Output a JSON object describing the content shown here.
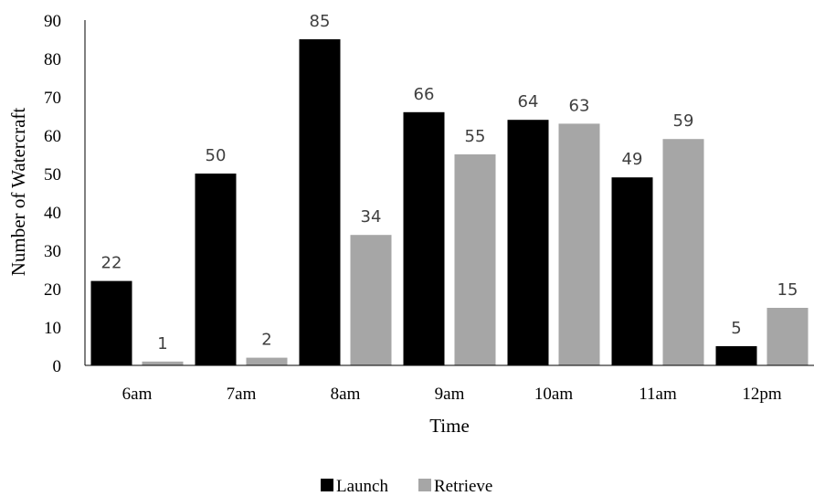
{
  "chart_data": {
    "type": "bar",
    "categories": [
      "6am",
      "7am",
      "8am",
      "9am",
      "10am",
      "11am",
      "12pm"
    ],
    "series": [
      {
        "name": "Launch",
        "values": [
          22,
          50,
          85,
          66,
          64,
          49,
          5
        ],
        "color": "#000000"
      },
      {
        "name": "Retrieve",
        "values": [
          1,
          2,
          34,
          55,
          63,
          59,
          15
        ],
        "color": "#a6a6a6"
      }
    ],
    "xlabel": "Time",
    "ylabel": "Number of Watercraft",
    "ylim": [
      0,
      90
    ],
    "yticks": [
      0,
      10,
      20,
      30,
      40,
      50,
      60,
      70,
      80,
      90
    ],
    "grid": false,
    "legend_position": "bottom-center"
  }
}
